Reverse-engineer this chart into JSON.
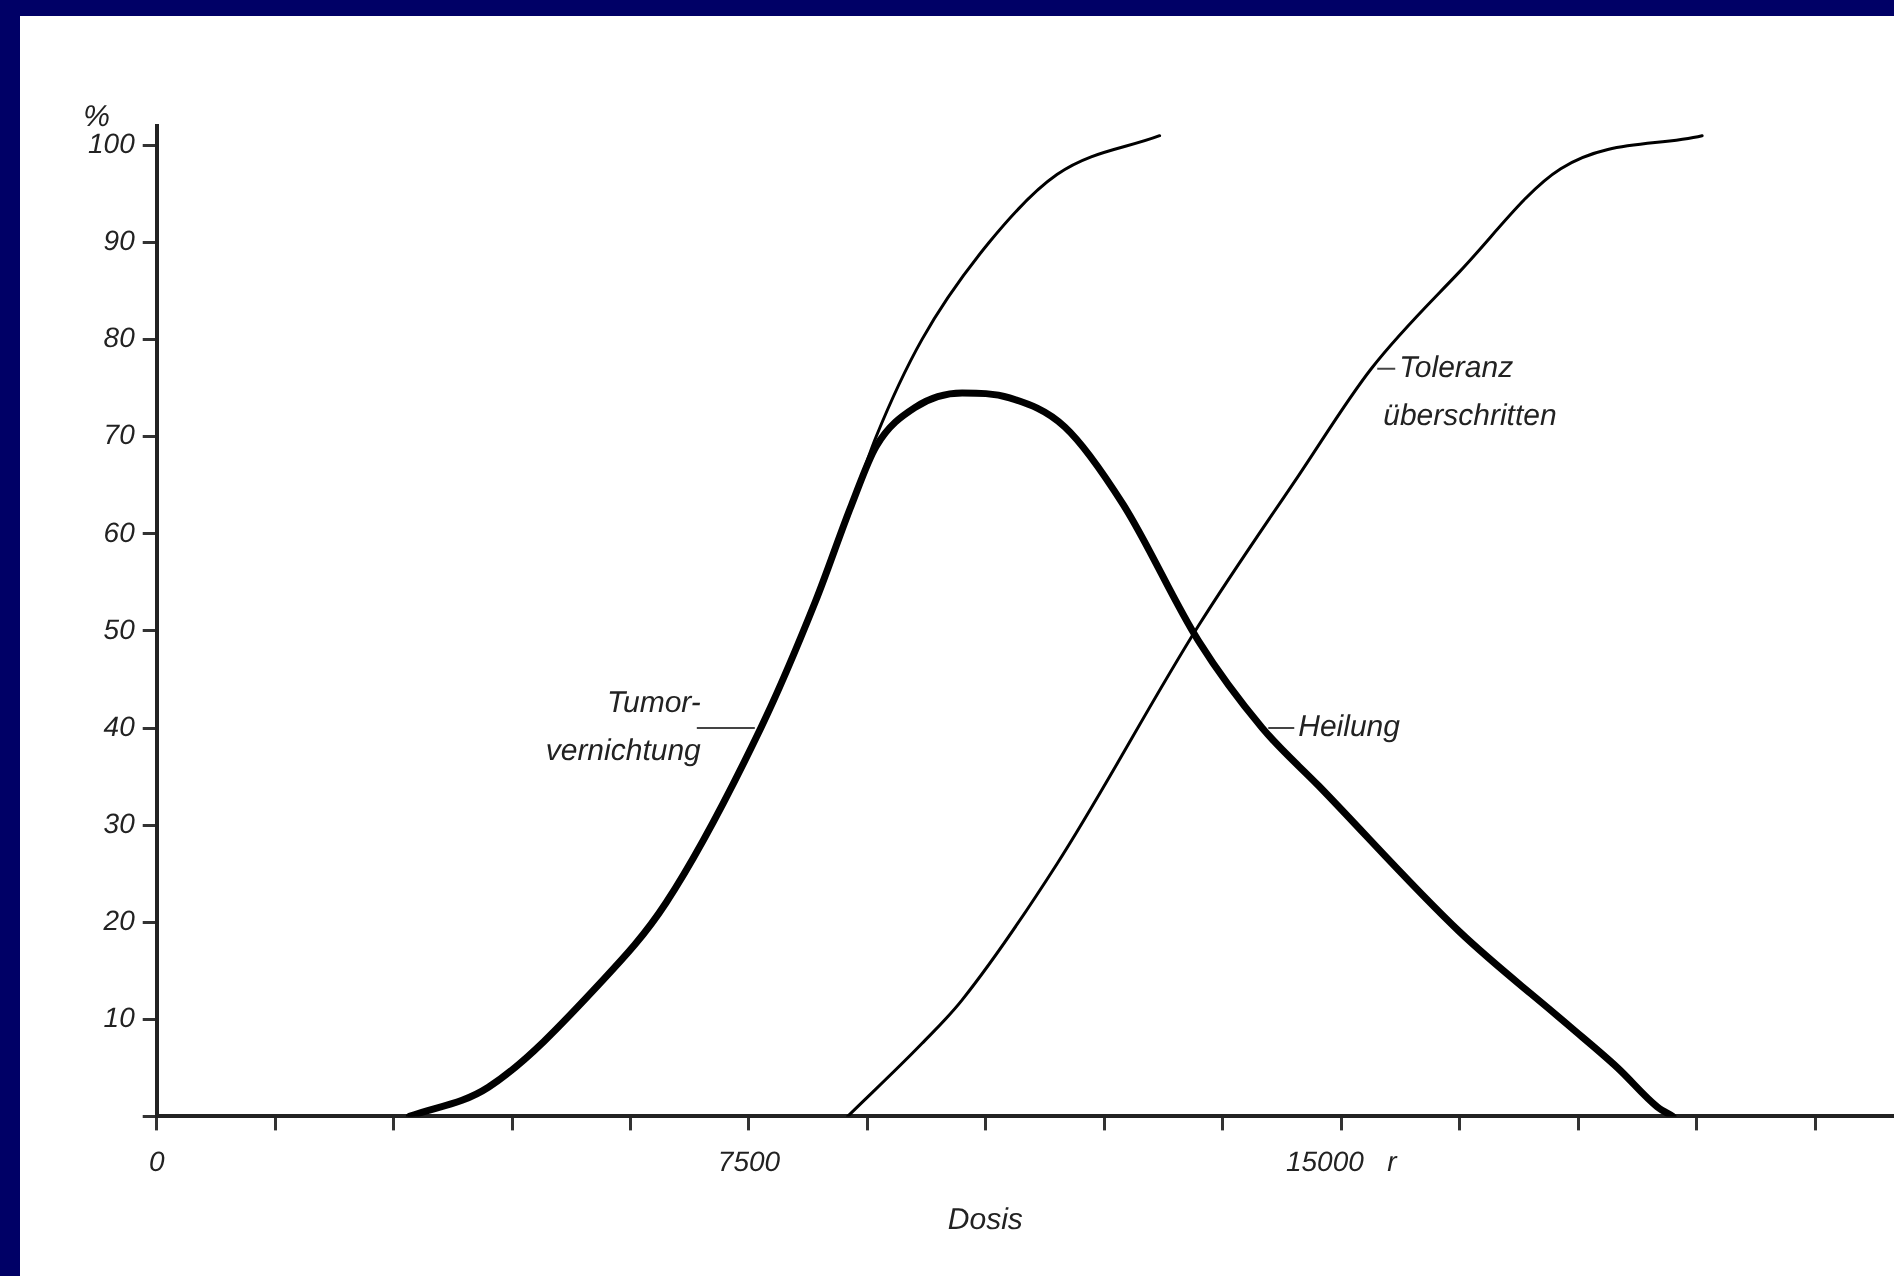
{
  "chart_data": {
    "type": "line",
    "xlabel": "Dosis",
    "ylabel": "%",
    "xlim": [
      0,
      22000
    ],
    "ylim": [
      0,
      102
    ],
    "xticks": [
      {
        "value": 0,
        "label": "0"
      },
      {
        "value": 1500,
        "label": null
      },
      {
        "value": 3000,
        "label": null
      },
      {
        "value": 4500,
        "label": null
      },
      {
        "value": 6000,
        "label": null
      },
      {
        "value": 7500,
        "label": "7500"
      },
      {
        "value": 9000,
        "label": null
      },
      {
        "value": 10500,
        "label": null
      },
      {
        "value": 12000,
        "label": null
      },
      {
        "value": 13500,
        "label": null
      },
      {
        "value": 15000,
        "label": "15000   r"
      },
      {
        "value": 16500,
        "label": null
      },
      {
        "value": 18000,
        "label": null
      },
      {
        "value": 19500,
        "label": null
      },
      {
        "value": 21000,
        "label": null
      }
    ],
    "yticks": [
      {
        "value": 0,
        "label": null
      },
      10,
      20,
      30,
      40,
      50,
      60,
      70,
      80,
      90,
      100
    ],
    "grid": false,
    "legend": false,
    "marker": "none",
    "line_style": "solid",
    "series": [
      {
        "name": "Tumor-vernichtung",
        "color": "#000000",
        "x": [
          3200,
          4200,
          5600,
          6450,
          7650,
          8340,
          8800,
          9110,
          9690,
          10540,
          11400,
          12700
        ],
        "values": [
          0,
          3,
          13.6,
          22,
          40,
          53,
          63,
          70,
          80,
          90,
          97,
          101
        ]
      },
      {
        "name": "Heilung",
        "color": "#000000",
        "x": [
          3200,
          4200,
          5600,
          6450,
          7650,
          8340,
          8800,
          9110,
          9600,
          10200,
          10800,
          11500,
          12240,
          13190,
          14000,
          14720,
          16500,
          17860,
          18500,
          19000,
          19200
        ],
        "values": [
          0,
          3,
          13.6,
          22,
          40,
          53,
          63,
          69,
          73,
          74.5,
          74,
          71,
          63,
          49,
          40,
          34,
          19,
          9.5,
          5,
          1,
          0
        ]
      },
      {
        "name": "Toleranz überschritten",
        "color": "#000000",
        "x": [
          8750,
          9690,
          10200,
          11400,
          13190,
          14460,
          15380,
          16500,
          17780,
          19570
        ],
        "values": [
          0,
          7.5,
          12,
          26,
          50.5,
          66,
          77,
          87,
          97.6,
          101
        ]
      }
    ]
  }
}
